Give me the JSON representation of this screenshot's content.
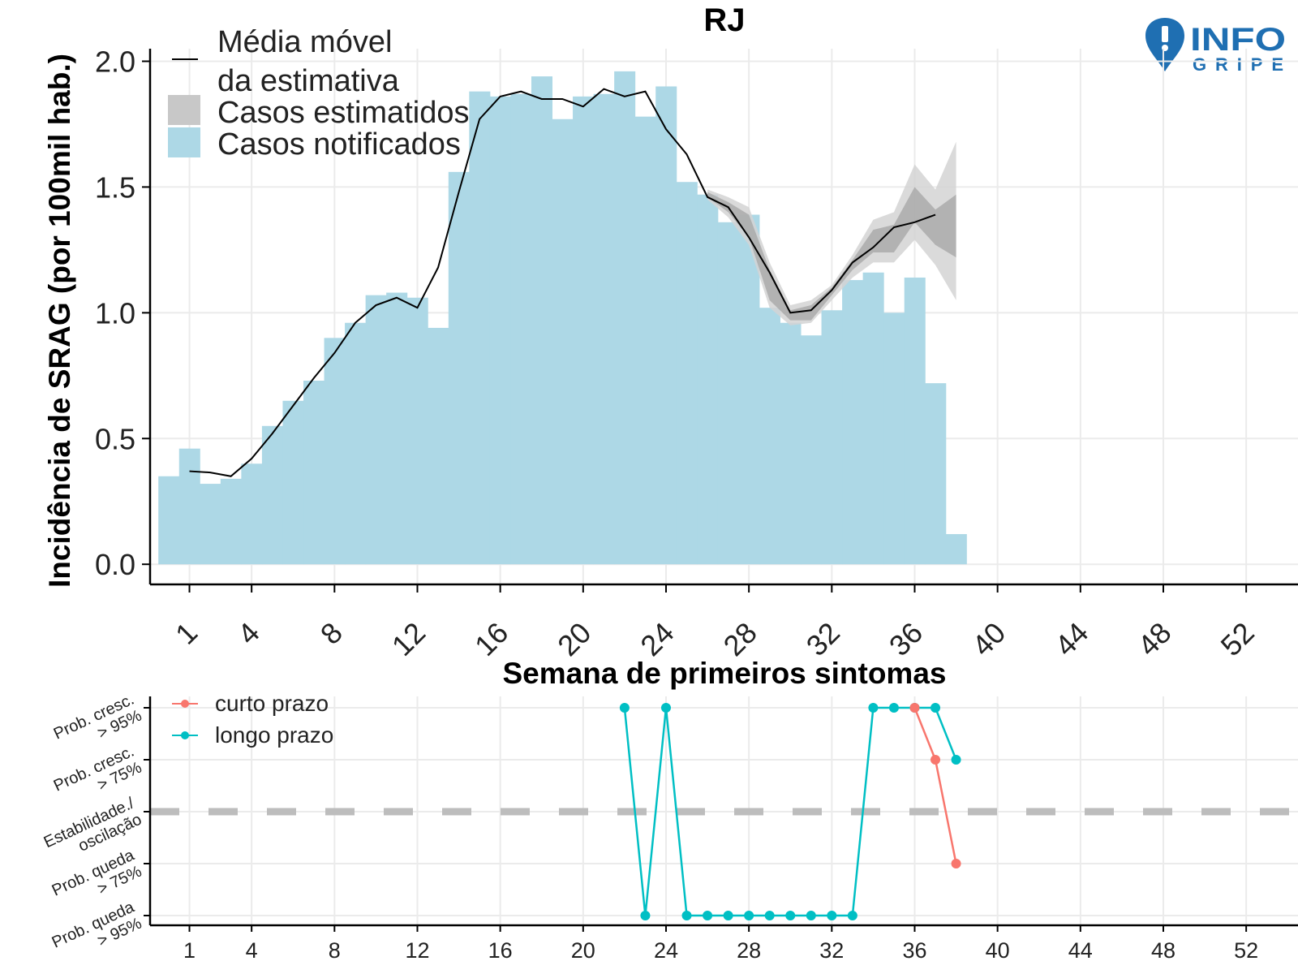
{
  "title": "RJ",
  "logo": {
    "line1": "INFO",
    "line2": "GRIPE",
    "icon": "map-pin-exclamation-icon",
    "color": "#1f6fb2"
  },
  "colors": {
    "bars": "#add8e6",
    "band_outer": "#d4d4d4",
    "band_inner": "#a8a8a8",
    "line": "#000000",
    "grid": "#ebebeb",
    "curto": "#f8766d",
    "longo": "#00bfc4",
    "dashed": "#bdbdbd"
  },
  "chart_data": [
    {
      "type": "bar",
      "xlabel": "Semana de primeiros sintomas",
      "ylabel": "Incidência de SRAG (por 100mil hab.)",
      "ylim": [
        -0.08,
        2.05
      ],
      "xlim": [
        -0.9,
        54.5
      ],
      "y_ticks": [
        "0.0",
        "0.5",
        "1.0",
        "1.5",
        "2.0"
      ],
      "y_tick_values": [
        0,
        0.5,
        1.0,
        1.5,
        2.0
      ],
      "x_ticks": [
        "1",
        "4",
        "8",
        "12",
        "16",
        "20",
        "24",
        "28",
        "32",
        "36",
        "40",
        "44",
        "48",
        "52"
      ],
      "x_tick_values": [
        1,
        4,
        8,
        12,
        16,
        20,
        24,
        28,
        32,
        36,
        40,
        44,
        48,
        52
      ],
      "grid": true,
      "legend": {
        "position": "top-left",
        "entries": [
          {
            "name": "Média móvel",
            "name2": "da estimativa",
            "symbol": "line"
          },
          {
            "name": "Casos estimatidos",
            "symbol": "gray-box"
          },
          {
            "name": "Casos notificados",
            "symbol": "blue-box"
          }
        ]
      },
      "bars": {
        "name": "Casos notificados",
        "x": [
          0,
          1,
          2,
          3,
          4,
          5,
          6,
          7,
          8,
          9,
          10,
          11,
          12,
          13,
          14,
          15,
          16,
          17,
          18,
          19,
          20,
          21,
          22,
          23,
          24,
          25,
          26,
          27,
          28,
          29,
          30,
          31,
          32,
          33,
          34,
          35,
          36,
          37,
          38
        ],
        "values": [
          0.35,
          0.46,
          0.32,
          0.34,
          0.4,
          0.55,
          0.65,
          0.73,
          0.9,
          0.96,
          1.07,
          1.08,
          1.06,
          0.94,
          1.56,
          1.88,
          1.86,
          1.87,
          1.94,
          1.77,
          1.86,
          1.87,
          1.96,
          1.78,
          1.9,
          1.52,
          1.47,
          1.36,
          1.39,
          1.02,
          0.96,
          0.91,
          1.01,
          1.13,
          1.16,
          1.0,
          1.14,
          0.72,
          0.12
        ]
      },
      "moving_average": {
        "name": "Média móvel da estimativa",
        "x": [
          1,
          2,
          3,
          4,
          5,
          6,
          7,
          8,
          9,
          10,
          11,
          12,
          13,
          14,
          15,
          16,
          17,
          18,
          19,
          20,
          21,
          22,
          23,
          24,
          25,
          26,
          27,
          28,
          29,
          30,
          31,
          32,
          33,
          34,
          35,
          36,
          37
        ],
        "values": [
          0.37,
          0.365,
          0.35,
          0.42,
          0.52,
          0.63,
          0.74,
          0.84,
          0.96,
          1.03,
          1.06,
          1.02,
          1.18,
          1.48,
          1.77,
          1.86,
          1.88,
          1.85,
          1.85,
          1.82,
          1.89,
          1.86,
          1.88,
          1.73,
          1.63,
          1.46,
          1.42,
          1.3,
          1.16,
          1.0,
          1.01,
          1.09,
          1.2,
          1.26,
          1.34,
          1.36,
          1.39
        ]
      },
      "estimate_band": {
        "name": "Casos estimatidos",
        "x": [
          26,
          27,
          28,
          29,
          30,
          31,
          32,
          33,
          34,
          35,
          36,
          37,
          38
        ],
        "outer_low": [
          1.45,
          1.38,
          1.27,
          1.02,
          0.95,
          0.96,
          1.05,
          1.14,
          1.2,
          1.2,
          1.29,
          1.19,
          1.05
        ],
        "outer_high": [
          1.49,
          1.46,
          1.42,
          1.2,
          1.03,
          1.05,
          1.11,
          1.23,
          1.37,
          1.4,
          1.59,
          1.49,
          1.68
        ],
        "inner_low": [
          1.46,
          1.4,
          1.3,
          1.05,
          0.97,
          0.97,
          1.07,
          1.17,
          1.24,
          1.24,
          1.36,
          1.27,
          1.22
        ],
        "inner_high": [
          1.48,
          1.44,
          1.39,
          1.17,
          1.01,
          1.03,
          1.1,
          1.21,
          1.33,
          1.35,
          1.5,
          1.41,
          1.47
        ]
      }
    },
    {
      "type": "line",
      "xlim": [
        -0.9,
        54.5
      ],
      "y_ticks": [
        [
          "Prob. cresc.",
          "> 95%"
        ],
        [
          "Prob. cresc.",
          "> 75%"
        ],
        [
          "Estabilidade./",
          "oscilação"
        ],
        [
          "Prob. queda",
          "> 75%"
        ],
        [
          "Prob. queda",
          "> 95%"
        ]
      ],
      "y_tick_values": [
        2,
        1,
        0,
        -1,
        -2
      ],
      "x_ticks": [
        "1",
        "4",
        "8",
        "12",
        "16",
        "20",
        "24",
        "28",
        "32",
        "36",
        "40",
        "44",
        "48",
        "52"
      ],
      "x_tick_values": [
        1,
        4,
        8,
        12,
        16,
        20,
        24,
        28,
        32,
        36,
        40,
        44,
        48,
        52
      ],
      "reference_line": 0,
      "legend": {
        "position": "top-left"
      },
      "series": [
        {
          "name": "curto prazo",
          "x": [
            36,
            37,
            38
          ],
          "values": [
            2,
            1,
            -1
          ]
        },
        {
          "name": "longo prazo",
          "x": [
            22,
            23,
            24,
            25,
            26,
            27,
            28,
            29,
            30,
            31,
            32,
            33,
            34,
            35,
            36,
            37,
            38
          ],
          "values": [
            2,
            -2,
            2,
            -2,
            -2,
            -2,
            -2,
            -2,
            -2,
            -2,
            -2,
            -2,
            2,
            2,
            2,
            2,
            1
          ]
        }
      ]
    }
  ]
}
